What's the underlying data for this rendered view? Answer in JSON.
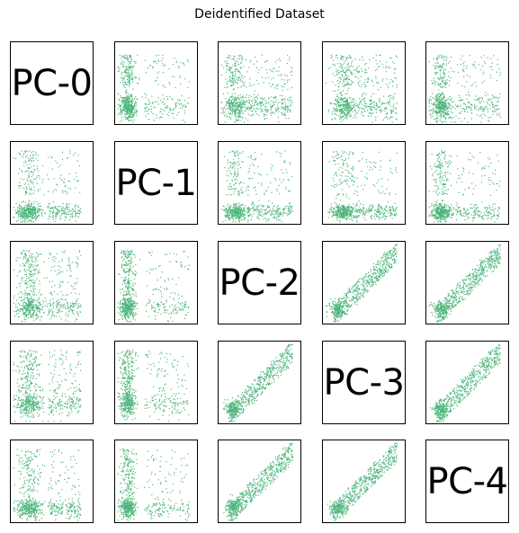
{
  "chart_data": {
    "type": "scatter",
    "title": "Deidentified Dataset",
    "subtype": "pair-plot matrix",
    "variables": [
      "PC-0",
      "PC-1",
      "PC-2",
      "PC-3",
      "PC-4"
    ],
    "point_color": "#4db57b",
    "axes_ticks": "none",
    "grid": false,
    "legend": "none"
  }
}
